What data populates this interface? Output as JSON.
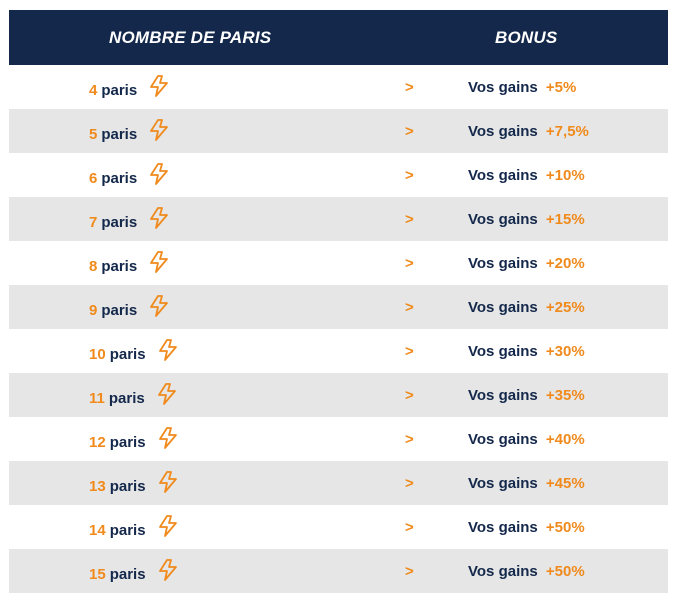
{
  "header": {
    "left": "NOMBRE DE PARIS",
    "right": "BONUS"
  },
  "colors": {
    "header_bg": "#14284b",
    "accent": "#f08a1c",
    "text": "#14284b",
    "row_shade": "#e6e6e6"
  },
  "rows": [
    {
      "count": "4",
      "unit": "paris",
      "icon": "lightning-icon",
      "arrow": ">",
      "label": "Vos gains",
      "bonus": "+5%"
    },
    {
      "count": "5",
      "unit": "paris",
      "icon": "lightning-icon",
      "arrow": ">",
      "label": "Vos gains",
      "bonus": "+7,5%"
    },
    {
      "count": "6",
      "unit": "paris",
      "icon": "lightning-icon",
      "arrow": ">",
      "label": "Vos gains",
      "bonus": "+10%"
    },
    {
      "count": "7",
      "unit": "paris",
      "icon": "lightning-icon",
      "arrow": ">",
      "label": "Vos gains",
      "bonus": "+15%"
    },
    {
      "count": "8",
      "unit": "paris",
      "icon": "lightning-icon",
      "arrow": ">",
      "label": "Vos gains",
      "bonus": "+20%"
    },
    {
      "count": "9",
      "unit": "paris",
      "icon": "lightning-icon",
      "arrow": ">",
      "label": "Vos gains",
      "bonus": "+25%"
    },
    {
      "count": "10",
      "unit": "paris",
      "icon": "lightning-icon",
      "arrow": ">",
      "label": "Vos gains",
      "bonus": "+30%"
    },
    {
      "count": "11",
      "unit": "paris",
      "icon": "lightning-icon",
      "arrow": ">",
      "label": "Vos gains",
      "bonus": "+35%"
    },
    {
      "count": "12",
      "unit": "paris",
      "icon": "lightning-icon",
      "arrow": ">",
      "label": "Vos gains",
      "bonus": "+40%"
    },
    {
      "count": "13",
      "unit": "paris",
      "icon": "lightning-icon",
      "arrow": ">",
      "label": "Vos gains",
      "bonus": "+45%"
    },
    {
      "count": "14",
      "unit": "paris",
      "icon": "lightning-icon",
      "arrow": ">",
      "label": "Vos gains",
      "bonus": "+50%"
    },
    {
      "count": "15",
      "unit": "paris",
      "icon": "lightning-icon",
      "arrow": ">",
      "label": "Vos gains",
      "bonus": "+50%"
    }
  ]
}
